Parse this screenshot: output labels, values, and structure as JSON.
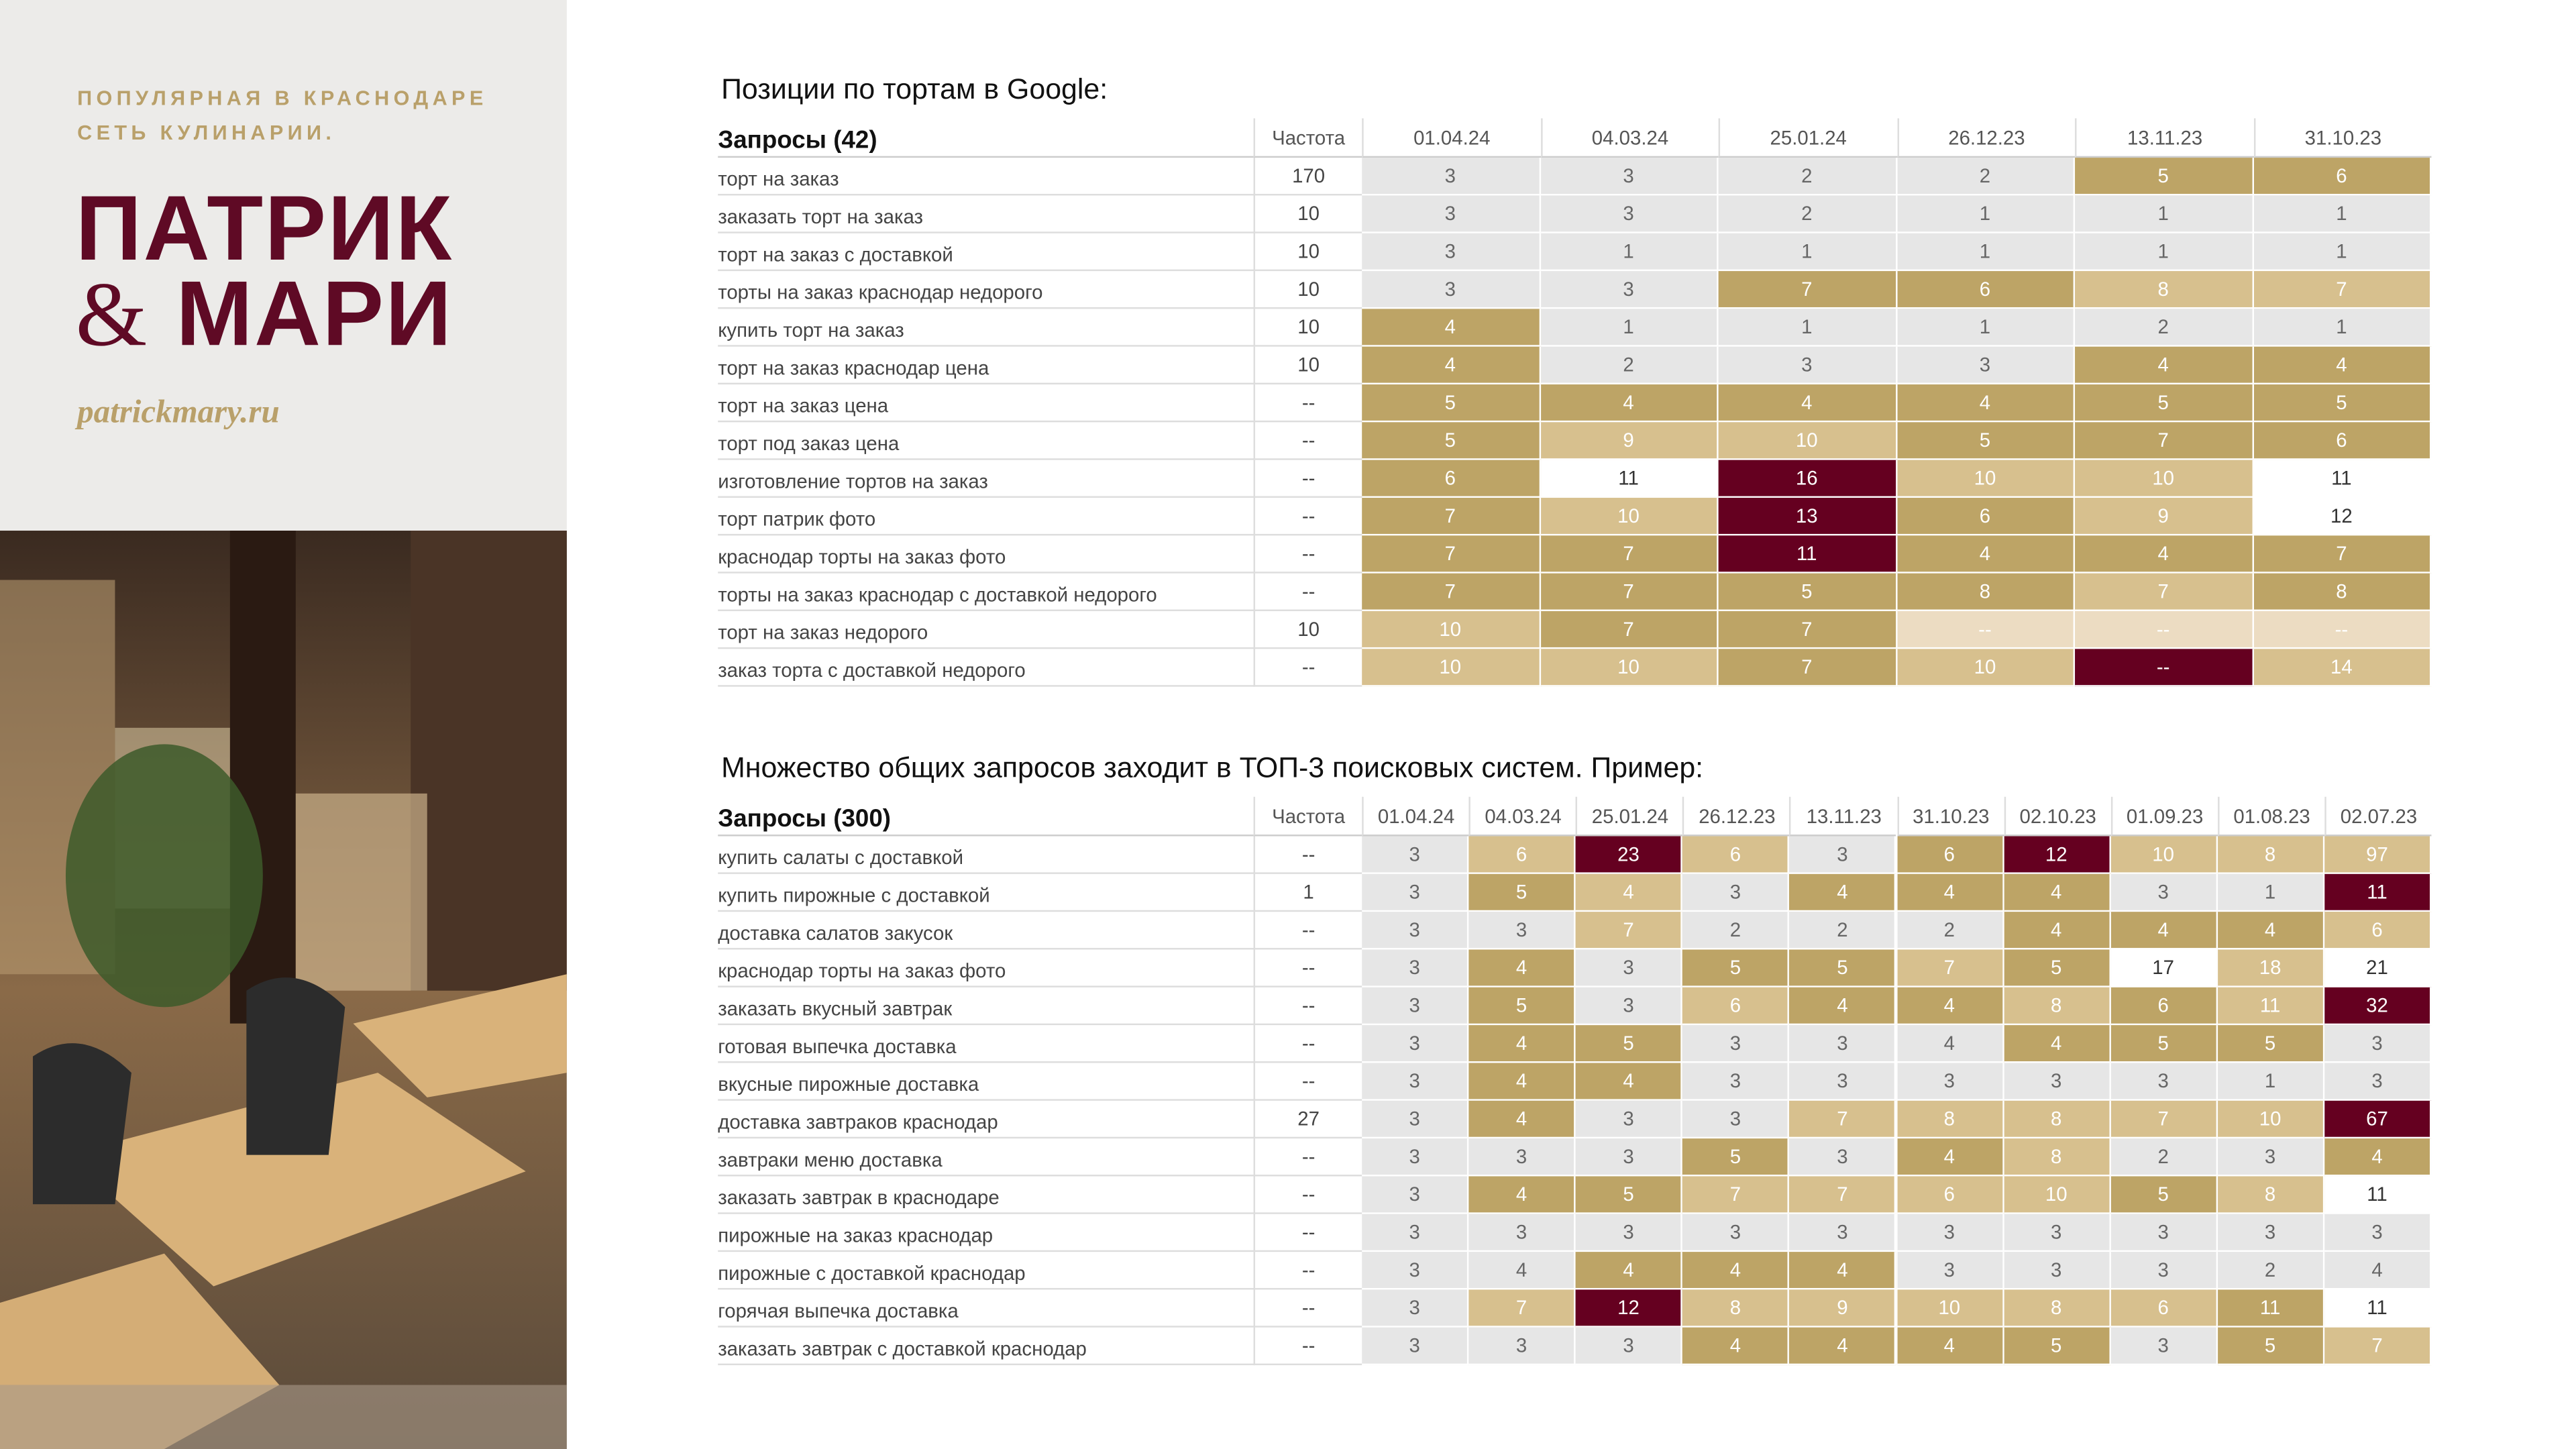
{
  "sidebar": {
    "tagline": [
      "ПОПУЛЯРНАЯ В КРАСНОДАРЕ",
      "СЕТЬ КУЛИНАРИИ."
    ],
    "logo": [
      "ПАТРИК",
      "&",
      "МАРИ"
    ],
    "url": "patrickmary.ru"
  },
  "palette": {
    "g": "#e6e6e6",
    "o": "#bda466",
    "t": "#d7c08e",
    "p": "#ecdcc2",
    "w": "#ffffff",
    "m": "#650020"
  },
  "tables": [
    {
      "title": "Позиции по тортам в Google:",
      "header": [
        "Запросы (42)",
        "Частота",
        "01.04.24",
        "04.03.24",
        "25.01.24",
        "26.12.23",
        "13.11.23",
        "31.10.23"
      ],
      "rows": [
        {
          "cells": [
            "торт на заказ",
            170,
            3,
            3,
            2,
            2,
            5,
            6
          ],
          "shades": "ggggoo"
        },
        {
          "cells": [
            "заказать торт на заказ",
            10,
            3,
            3,
            2,
            1,
            1,
            1
          ],
          "shades": "gggggg"
        },
        {
          "cells": [
            "торт на заказ с доставкой",
            10,
            3,
            1,
            1,
            1,
            1,
            1
          ],
          "shades": "gggggg"
        },
        {
          "cells": [
            "торты на заказ краснодар недорого",
            10,
            3,
            3,
            7,
            6,
            8,
            7
          ],
          "shades": "ggootto"
        },
        {
          "cells": [
            "купить торт на заказ",
            10,
            4,
            1,
            1,
            1,
            2,
            1
          ],
          "shades": "oggggg"
        },
        {
          "cells": [
            "торт на заказ краснодар цена",
            10,
            4,
            2,
            3,
            3,
            4,
            4
          ],
          "shades": "ogggoo"
        },
        {
          "cells": [
            "торт на заказ цена",
            "--",
            5,
            4,
            4,
            4,
            5,
            5
          ],
          "shades": "oooooo"
        },
        {
          "cells": [
            "торт под заказ цена",
            "--",
            5,
            9,
            10,
            5,
            7,
            6
          ],
          "shades": "ottooo"
        },
        {
          "cells": [
            "изготовление тортов на заказ",
            "--",
            6,
            11,
            16,
            10,
            10,
            11
          ],
          "shades": "owmttw"
        },
        {
          "cells": [
            "торт патрик фото",
            "--",
            7,
            10,
            13,
            6,
            9,
            12
          ],
          "shades": "otmotw"
        },
        {
          "cells": [
            "краснодар торты на заказ фото",
            "--",
            7,
            7,
            11,
            4,
            4,
            7
          ],
          "shades": "oomooo"
        },
        {
          "cells": [
            "торты на заказ краснодар с доставкой недорого",
            "--",
            7,
            7,
            5,
            8,
            7,
            8
          ],
          "shades": "ooooto"
        },
        {
          "cells": [
            "торт на заказ недорого",
            10,
            10,
            7,
            7,
            "--",
            "--",
            "--"
          ],
          "shades": "tooppp"
        },
        {
          "cells": [
            "заказ торта с доставкой недорого",
            "--",
            10,
            10,
            7,
            10,
            "--",
            14
          ],
          "shades": "ttotmt"
        }
      ]
    },
    {
      "title": "Множество общих запросов заходит в ТОП-3 поисковых систем. Пример:",
      "header": [
        "Запросы (300)",
        "Частота",
        "01.04.24",
        "04.03.24",
        "25.01.24",
        "26.12.23",
        "13.11.23",
        "31.10.23",
        "02.10.23",
        "01.09.23",
        "01.08.23",
        "02.07.23"
      ],
      "rows": [
        {
          "cells": [
            "купить салаты с доставкой",
            "--",
            3,
            6,
            23,
            6,
            3,
            6,
            12,
            10,
            8,
            97
          ],
          "shades": "gtmtgomttt"
        },
        {
          "cells": [
            "купить пирожные с доставкой",
            1,
            3,
            5,
            4,
            3,
            4,
            4,
            4,
            3,
            1,
            11
          ],
          "shades": "gotgooogg m"
        },
        {
          "cells": [
            "доставка салатов закусок",
            "--",
            3,
            3,
            7,
            2,
            2,
            2,
            4,
            4,
            4,
            6
          ],
          "shades": "ggtgggooot"
        },
        {
          "cells": [
            "краснодар торты на заказ фото",
            "--",
            3,
            4,
            3,
            5,
            5,
            7,
            5,
            17,
            18,
            21
          ],
          "shades": "gogootowtw"
        },
        {
          "cells": [
            "заказать вкусный завтрак",
            "--",
            3,
            5,
            3,
            6,
            4,
            4,
            8,
            6,
            11,
            32
          ],
          "shades": "gogtoototm"
        },
        {
          "cells": [
            "готовая выпечка доставка",
            "--",
            3,
            4,
            5,
            3,
            3,
            4,
            4,
            5,
            5,
            3
          ],
          "shades": "googggooog"
        },
        {
          "cells": [
            "вкусные пирожные доставка",
            "--",
            3,
            4,
            4,
            3,
            3,
            3,
            3,
            3,
            1,
            3
          ],
          "shades": "googgggggg"
        },
        {
          "cells": [
            "доставка завтраков краснодар",
            27,
            3,
            4,
            3,
            3,
            7,
            8,
            8,
            7,
            10,
            67
          ],
          "shades": "goggtttttm"
        },
        {
          "cells": [
            "завтраки меню доставка",
            "--",
            3,
            3,
            3,
            5,
            3,
            4,
            8,
            2,
            3,
            4
          ],
          "shades": "gggogotggo"
        },
        {
          "cells": [
            "заказать завтрак в краснодаре",
            "--",
            3,
            4,
            5,
            7,
            7,
            6,
            10,
            5,
            8,
            11
          ],
          "shades": "goottttotw"
        },
        {
          "cells": [
            "пирожные на заказ краснодар",
            "--",
            3,
            3,
            3,
            3,
            3,
            3,
            3,
            3,
            3,
            3
          ],
          "shades": "gggggggggg"
        },
        {
          "cells": [
            "пирожные с доставкой краснодар",
            "--",
            3,
            4,
            4,
            4,
            4,
            3,
            3,
            3,
            2,
            4
          ],
          "shades": "ggooogggggo"
        },
        {
          "cells": [
            "горячая выпечка доставка",
            "--",
            3,
            7,
            12,
            8,
            9,
            10,
            8,
            6,
            11,
            11
          ],
          "shades": "gtmtttttowm"
        },
        {
          "cells": [
            "заказать завтрак с доставкой краснодар",
            "--",
            3,
            3,
            3,
            4,
            4,
            4,
            5,
            3,
            5,
            7
          ],
          "shades": "gggoooogot"
        }
      ]
    }
  ]
}
